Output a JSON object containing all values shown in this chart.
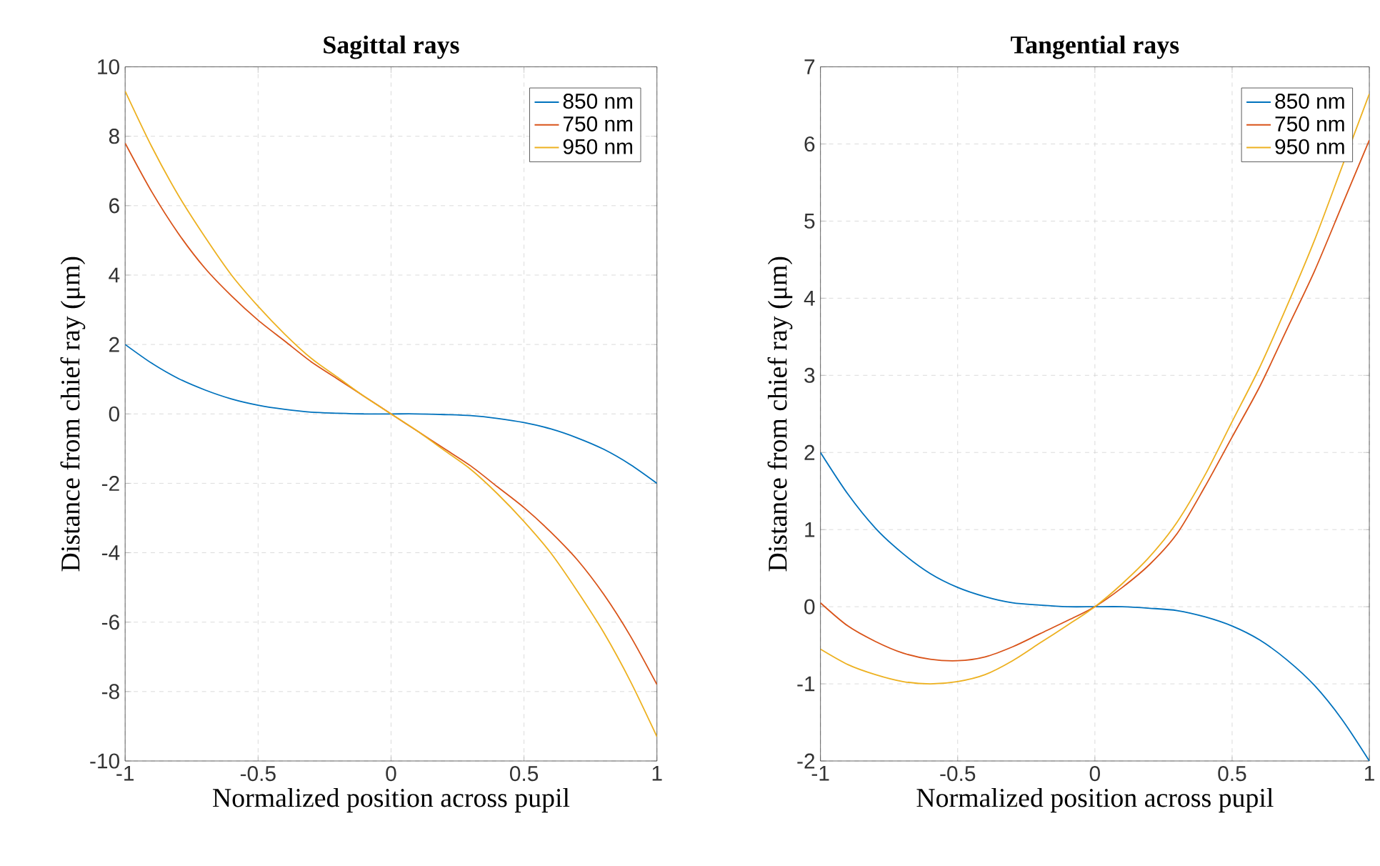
{
  "chart_data": [
    {
      "type": "line",
      "title": "Sagittal rays",
      "xlabel": "Normalized position across pupil",
      "ylabel": "Distance from chief ray (μm)",
      "x": [
        -1,
        -0.9,
        -0.8,
        -0.7,
        -0.6,
        -0.5,
        -0.4,
        -0.3,
        -0.2,
        -0.1,
        0,
        0.1,
        0.2,
        0.3,
        0.4,
        0.5,
        0.6,
        0.7,
        0.8,
        0.9,
        1
      ],
      "series": [
        {
          "name": "850 nm",
          "color": "#0072bd",
          "values": [
            2,
            1.46,
            1.02,
            0.69,
            0.43,
            0.25,
            0.13,
            0.05,
            0.02,
            0,
            0,
            0,
            -0.02,
            -0.05,
            -0.13,
            -0.25,
            -0.43,
            -0.69,
            -1.02,
            -1.46,
            -2
          ]
        },
        {
          "name": "750 nm",
          "color": "#d95319",
          "values": [
            7.8,
            6.4,
            5.2,
            4.2,
            3.4,
            2.7,
            2.1,
            1.5,
            1.0,
            0.5,
            0,
            -0.5,
            -1.0,
            -1.5,
            -2.1,
            -2.7,
            -3.4,
            -4.2,
            -5.2,
            -6.4,
            -7.8
          ]
        },
        {
          "name": "950 nm",
          "color": "#edb120",
          "values": [
            9.3,
            7.7,
            6.3,
            5.1,
            4.0,
            3.1,
            2.3,
            1.6,
            1.05,
            0.5,
            0,
            -0.5,
            -1.05,
            -1.6,
            -2.3,
            -3.1,
            -4.0,
            -5.1,
            -6.3,
            -7.7,
            -9.3
          ]
        }
      ],
      "xlim": [
        -1,
        1
      ],
      "xticks": [
        -1,
        -0.5,
        0,
        0.5,
        1
      ],
      "ylim": [
        -10,
        10
      ],
      "yticks": [
        -10,
        -8,
        -6,
        -4,
        -2,
        0,
        2,
        4,
        6,
        8,
        10
      ],
      "grid": true,
      "legend": "top right",
      "line_style": "solid",
      "marker": "none"
    },
    {
      "type": "line",
      "title": "Tangential rays",
      "xlabel": "Normalized position across pupil",
      "ylabel": "Distance from chief ray (μm)",
      "x": [
        -1,
        -0.9,
        -0.8,
        -0.7,
        -0.6,
        -0.5,
        -0.4,
        -0.3,
        -0.2,
        -0.1,
        0,
        0.1,
        0.2,
        0.3,
        0.4,
        0.5,
        0.6,
        0.7,
        0.8,
        0.9,
        1
      ],
      "series": [
        {
          "name": "850 nm",
          "color": "#0072bd",
          "values": [
            2,
            1.46,
            1.02,
            0.69,
            0.43,
            0.25,
            0.13,
            0.05,
            0.02,
            0,
            0,
            0,
            -0.02,
            -0.05,
            -0.13,
            -0.25,
            -0.43,
            -0.69,
            -1.02,
            -1.46,
            -2
          ]
        },
        {
          "name": "750 nm",
          "color": "#d95319",
          "values": [
            0.05,
            -0.25,
            -0.45,
            -0.6,
            -0.68,
            -0.7,
            -0.65,
            -0.52,
            -0.35,
            -0.18,
            0,
            0.25,
            0.55,
            0.95,
            1.55,
            2.2,
            2.85,
            3.6,
            4.35,
            5.2,
            6.05
          ]
        },
        {
          "name": "950 nm",
          "color": "#edb120",
          "values": [
            -0.55,
            -0.75,
            -0.88,
            -0.97,
            -1.0,
            -0.97,
            -0.88,
            -0.7,
            -0.47,
            -0.24,
            0,
            0.3,
            0.65,
            1.1,
            1.7,
            2.4,
            3.1,
            3.9,
            4.75,
            5.7,
            6.65
          ]
        }
      ],
      "xlim": [
        -1,
        1
      ],
      "xticks": [
        -1,
        -0.5,
        0,
        0.5,
        1
      ],
      "ylim": [
        -2,
        7
      ],
      "yticks": [
        -2,
        -1,
        0,
        1,
        2,
        3,
        4,
        5,
        6,
        7
      ],
      "grid": true,
      "legend": "top right",
      "line_style": "solid",
      "marker": "none"
    }
  ]
}
